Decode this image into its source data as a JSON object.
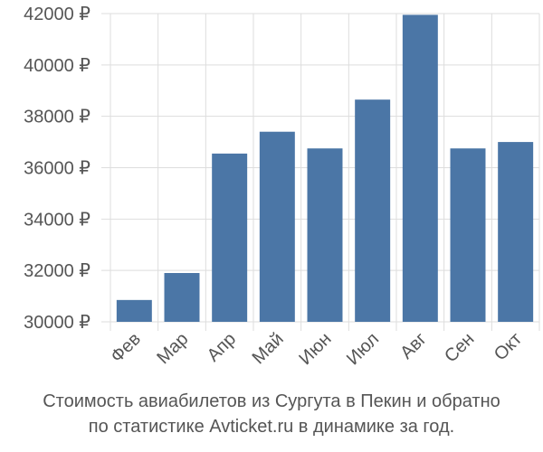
{
  "chart_data": {
    "type": "bar",
    "categories": [
      "Фев",
      "Мар",
      "Апр",
      "Май",
      "Июн",
      "Июл",
      "Авг",
      "Сен",
      "Окт"
    ],
    "values": [
      30850,
      31900,
      36550,
      37400,
      36750,
      38650,
      41950,
      36750,
      37000
    ],
    "ylim": [
      30000,
      42000
    ],
    "yticks": [
      30000,
      32000,
      34000,
      36000,
      38000,
      40000,
      42000
    ],
    "tick_suffix": " ₽",
    "grid": true,
    "bar_color": "#4b76a6",
    "title_lines": [
      "Стоимость авиабилетов из Сургута в Пекин и обратно",
      "по статистике Avticket.ru в динамике за год."
    ]
  }
}
